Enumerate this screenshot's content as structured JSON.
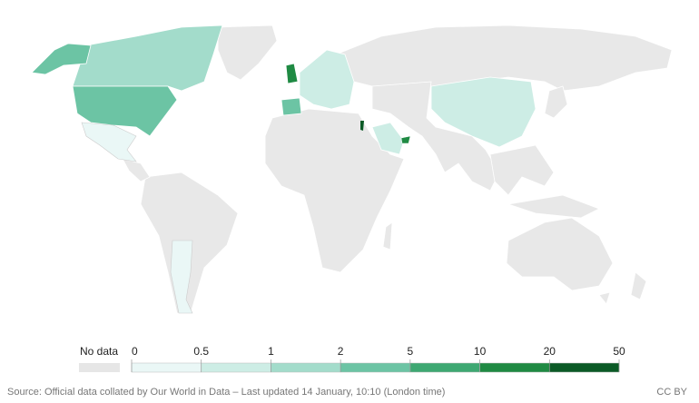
{
  "legend": {
    "no_data_label": "No data",
    "no_data_color": "#e6e6e6",
    "ticks": [
      0,
      0.5,
      1,
      2,
      5,
      10,
      20,
      50
    ],
    "colors": [
      "#eaf7f6",
      "#cdede5",
      "#a3dccb",
      "#6cc4a4",
      "#3ea872",
      "#1f8a43",
      "#0b5a26"
    ]
  },
  "footer": {
    "source": "Source: Official data collated by Our World in Data – Last updated 14 January, 10:10 (London time)",
    "license": "CC BY"
  }
}
